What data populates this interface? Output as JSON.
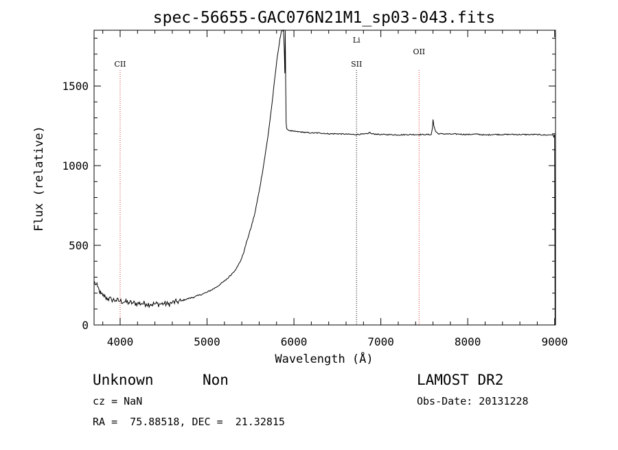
{
  "chart_data": {
    "type": "line",
    "title": "spec-56655-GAC076N21M1_sp03-043.fits",
    "xlabel": "Wavelength (Å)",
    "ylabel": "Flux (relative)",
    "xlim": [
      3700,
      9010
    ],
    "ylim": [
      0,
      1850
    ],
    "x_ticks": [
      {
        "value": 4000,
        "label": "4000"
      },
      {
        "value": 5000,
        "label": "5000"
      },
      {
        "value": 6000,
        "label": "6000"
      },
      {
        "value": 7000,
        "label": "7000"
      },
      {
        "value": 8000,
        "label": "8000"
      },
      {
        "value": 9000,
        "label": "9000"
      }
    ],
    "y_ticks": [
      {
        "value": 0,
        "label": "0"
      },
      {
        "value": 500,
        "label": "500"
      },
      {
        "value": 1000,
        "label": "1000"
      },
      {
        "value": 1500,
        "label": "1500"
      }
    ],
    "series": [
      {
        "color": "#000000",
        "x": [
          3700,
          3720,
          3740,
          3760,
          3780,
          3800,
          3830,
          3860,
          3900,
          3950,
          4000,
          4050,
          4100,
          4150,
          4200,
          4250,
          4300,
          4350,
          4400,
          4450,
          4500,
          4550,
          4600,
          4650,
          4700,
          4750,
          4800,
          4850,
          4900,
          4950,
          5000,
          5050,
          5100,
          5150,
          5200,
          5250,
          5300,
          5350,
          5400,
          5430,
          5460,
          5500,
          5550,
          5600,
          5650,
          5700,
          5750,
          5780,
          5810,
          5840,
          5860,
          5880,
          5890,
          5895,
          5900,
          5905,
          5910,
          5915,
          5920,
          5930,
          5950,
          6000,
          6100,
          6200,
          6300,
          6400,
          6500,
          6600,
          6700,
          6800,
          6850,
          6870,
          6890,
          6950,
          7000,
          7100,
          7200,
          7300,
          7400,
          7500,
          7580,
          7595,
          7600,
          7610,
          7630,
          7660,
          7700,
          7800,
          7900,
          8000,
          8100,
          8200,
          8300,
          8400,
          8500,
          8600,
          8700,
          8800,
          8900,
          8980,
          8990,
          9000,
          9005
        ],
        "y": [
          270,
          255,
          240,
          215,
          195,
          185,
          175,
          165,
          160,
          155,
          150,
          145,
          140,
          138,
          135,
          135,
          133,
          130,
          132,
          131,
          135,
          130,
          140,
          145,
          150,
          160,
          168,
          175,
          185,
          195,
          205,
          220,
          235,
          255,
          275,
          300,
          330,
          365,
          420,
          470,
          530,
          600,
          700,
          840,
          1000,
          1180,
          1400,
          1550,
          1690,
          1800,
          1850,
          1850,
          1700,
          1580,
          1850,
          1500,
          1270,
          1240,
          1230,
          1225,
          1220,
          1215,
          1210,
          1205,
          1205,
          1200,
          1200,
          1198,
          1195,
          1198,
          1200,
          1210,
          1200,
          1198,
          1195,
          1195,
          1193,
          1195,
          1195,
          1195,
          1195,
          1240,
          1290,
          1250,
          1215,
          1200,
          1200,
          1198,
          1198,
          1195,
          1198,
          1192,
          1196,
          1195,
          1196,
          1195,
          1195,
          1195,
          1192,
          1195,
          1180,
          1195,
          0
        ]
      }
    ],
    "reference_lines": [
      {
        "label": "CII",
        "x": 4000,
        "color": "#e03030"
      },
      {
        "label": "SII",
        "x": 6720,
        "color": "#000000"
      },
      {
        "label": "Li",
        "x": 6720,
        "color": "#000000",
        "upper": true
      },
      {
        "label": "OII",
        "x": 7440,
        "color": "#e03030"
      }
    ],
    "grid": false
  },
  "info": {
    "class": "Unknown",
    "subclass": "Non",
    "survey": "LAMOST DR2",
    "cz": "cz = NaN",
    "obs_date": "Obs-Date: 20131228",
    "coords": "RA =  75.88518, DEC =  21.32815"
  }
}
